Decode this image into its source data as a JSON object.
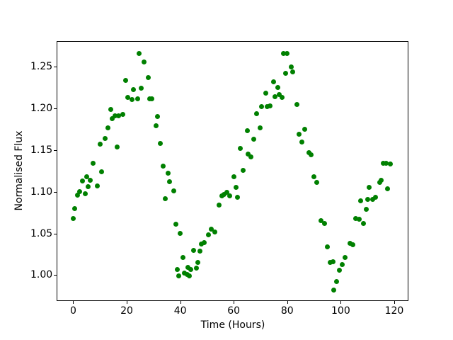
{
  "chart_data": {
    "type": "scatter",
    "title": "",
    "xlabel": "Time (Hours)",
    "ylabel": "Normalised Flux",
    "legend": null,
    "grid": false,
    "marker": "circle",
    "marker_color": "#008000",
    "marker_size_px": 7,
    "xlim": [
      -6.2,
      125.3
    ],
    "ylim": [
      0.9688,
      1.2809
    ],
    "x_ticks": [
      {
        "value": 0,
        "label": "0"
      },
      {
        "value": 20,
        "label": "20"
      },
      {
        "value": 40,
        "label": "40"
      },
      {
        "value": 60,
        "label": "60"
      },
      {
        "value": 80,
        "label": "80"
      },
      {
        "value": 100,
        "label": "100"
      },
      {
        "value": 120,
        "label": "120"
      }
    ],
    "y_ticks": [
      {
        "value": 1.0,
        "label": "1.00"
      },
      {
        "value": 1.05,
        "label": "1.05"
      },
      {
        "value": 1.1,
        "label": "1.10"
      },
      {
        "value": 1.15,
        "label": "1.15"
      },
      {
        "value": 1.2,
        "label": "1.20"
      },
      {
        "value": 1.25,
        "label": "1.25"
      }
    ],
    "points": [
      [
        0,
        1.068
      ],
      [
        0.5,
        1.08
      ],
      [
        1.5,
        1.096
      ],
      [
        2.5,
        1.1
      ],
      [
        3.5,
        1.113
      ],
      [
        4.5,
        1.098
      ],
      [
        5,
        1.118
      ],
      [
        5.5,
        1.106
      ],
      [
        6.5,
        1.114
      ],
      [
        7.5,
        1.134
      ],
      [
        9,
        1.107
      ],
      [
        10,
        1.157
      ],
      [
        10.5,
        1.124
      ],
      [
        12,
        1.164
      ],
      [
        13,
        1.177
      ],
      [
        14,
        1.199
      ],
      [
        14.5,
        1.188
      ],
      [
        15.5,
        1.191
      ],
      [
        16.5,
        1.154
      ],
      [
        17,
        1.191
      ],
      [
        18.5,
        1.193
      ],
      [
        19.5,
        1.234
      ],
      [
        20.5,
        1.213
      ],
      [
        22,
        1.211
      ],
      [
        22.5,
        1.223
      ],
      [
        24,
        1.212
      ],
      [
        24.5,
        1.266
      ],
      [
        25.5,
        1.224
      ],
      [
        26.5,
        1.256
      ],
      [
        28,
        1.237
      ],
      [
        28.5,
        1.212
      ],
      [
        29.5,
        1.212
      ],
      [
        31,
        1.179
      ],
      [
        31.5,
        1.19
      ],
      [
        32.5,
        1.158
      ],
      [
        33.5,
        1.131
      ],
      [
        34.5,
        1.092
      ],
      [
        35.5,
        1.122
      ],
      [
        36,
        1.112
      ],
      [
        37.5,
        1.101
      ],
      [
        38.5,
        1.061
      ],
      [
        39,
        1.007
      ],
      [
        39.5,
        0.999
      ],
      [
        40,
        1.05
      ],
      [
        41,
        1.021
      ],
      [
        41.5,
        1.002
      ],
      [
        42.5,
        1.001
      ],
      [
        43,
        1.009
      ],
      [
        43.5,
        0.999
      ],
      [
        44,
        1.007
      ],
      [
        45,
        1.03
      ],
      [
        46,
        1.008
      ],
      [
        46.5,
        1.015
      ],
      [
        47.5,
        1.029
      ],
      [
        48,
        1.037
      ],
      [
        49,
        1.039
      ],
      [
        50.5,
        1.048
      ],
      [
        51.5,
        1.055
      ],
      [
        53,
        1.052
      ],
      [
        54.5,
        1.084
      ],
      [
        55.5,
        1.095
      ],
      [
        56.5,
        1.097
      ],
      [
        57.5,
        1.099
      ],
      [
        58.5,
        1.095
      ],
      [
        60,
        1.118
      ],
      [
        61,
        1.105
      ],
      [
        61.5,
        1.093
      ],
      [
        62.5,
        1.152
      ],
      [
        63.5,
        1.126
      ],
      [
        65,
        1.173
      ],
      [
        65.5,
        1.145
      ],
      [
        66.5,
        1.142
      ],
      [
        67.5,
        1.163
      ],
      [
        68.5,
        1.194
      ],
      [
        70,
        1.177
      ],
      [
        70.5,
        1.202
      ],
      [
        72,
        1.218
      ],
      [
        72.5,
        1.202
      ],
      [
        73.5,
        1.203
      ],
      [
        75,
        1.232
      ],
      [
        75.5,
        1.214
      ],
      [
        76.5,
        1.225
      ],
      [
        77,
        1.217
      ],
      [
        78,
        1.213
      ],
      [
        78.5,
        1.266
      ],
      [
        79.5,
        1.242
      ],
      [
        80,
        1.266
      ],
      [
        81.5,
        1.25
      ],
      [
        82,
        1.244
      ],
      [
        83.5,
        1.205
      ],
      [
        84.5,
        1.169
      ],
      [
        85.5,
        1.16
      ],
      [
        86.5,
        1.175
      ],
      [
        88,
        1.147
      ],
      [
        89,
        1.144
      ],
      [
        90,
        1.118
      ],
      [
        91,
        1.111
      ],
      [
        92.5,
        1.065
      ],
      [
        94,
        1.062
      ],
      [
        95,
        1.034
      ],
      [
        96,
        1.015
      ],
      [
        97,
        1.016
      ],
      [
        97.5,
        0.982
      ],
      [
        98.5,
        0.992
      ],
      [
        99.5,
        1.006
      ],
      [
        100.5,
        1.013
      ],
      [
        101.5,
        1.021
      ],
      [
        103.5,
        1.038
      ],
      [
        104.5,
        1.036
      ],
      [
        105.5,
        1.068
      ],
      [
        107,
        1.067
      ],
      [
        107.5,
        1.089
      ],
      [
        108.5,
        1.062
      ],
      [
        109.5,
        1.079
      ],
      [
        110,
        1.091
      ],
      [
        110.5,
        1.105
      ],
      [
        112,
        1.091
      ],
      [
        113,
        1.093
      ],
      [
        114.5,
        1.111
      ],
      [
        115,
        1.114
      ],
      [
        116,
        1.134
      ],
      [
        117,
        1.134
      ],
      [
        117.5,
        1.104
      ],
      [
        118.5,
        1.133
      ]
    ]
  }
}
